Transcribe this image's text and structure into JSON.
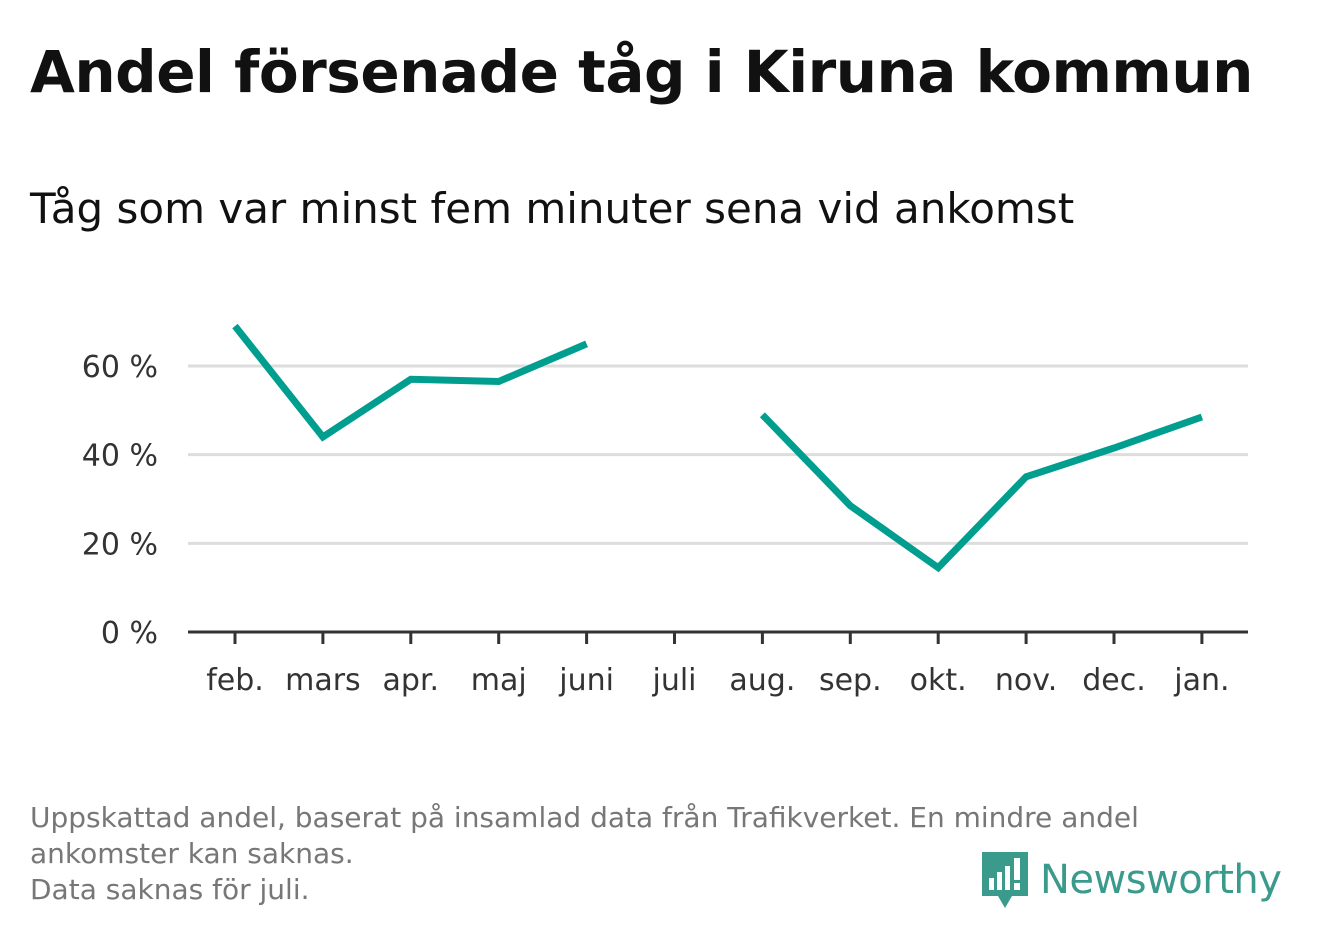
{
  "title": "Andel försenade tåg i Kiruna kommun",
  "subtitle": "Tåg som var minst fem minuter sena vid ankomst",
  "footnote": {
    "line1": "Uppskattad andel, baserat på insamlad data från Trafikverket. En mindre andel ankomster kan saknas.",
    "line2": "Data saknas för juli."
  },
  "logo": {
    "text": "Newsworthy",
    "icon": "newsworthy-logo-icon",
    "color": "#3a9a8c"
  },
  "chart_data": {
    "type": "line",
    "title": "Andel försenade tåg i Kiruna kommun",
    "subtitle": "Tåg som var minst fem minuter sena vid ankomst",
    "xlabel": "",
    "ylabel": "",
    "categories": [
      "feb.",
      "mars",
      "apr.",
      "maj",
      "juni",
      "juli",
      "aug.",
      "sep.",
      "okt.",
      "nov.",
      "dec.",
      "jan."
    ],
    "series": [
      {
        "values": [
          69,
          44,
          57,
          56.5,
          65,
          null,
          49,
          28.5,
          14.5,
          35,
          41.5,
          48.5
        ],
        "color": "#009e8f"
      }
    ],
    "ylim": [
      0,
      70
    ],
    "yticks": [
      0,
      20,
      40,
      60
    ],
    "ytick_labels": [
      "0 %",
      "20 %",
      "40 %",
      "60 %"
    ],
    "grid": true
  }
}
